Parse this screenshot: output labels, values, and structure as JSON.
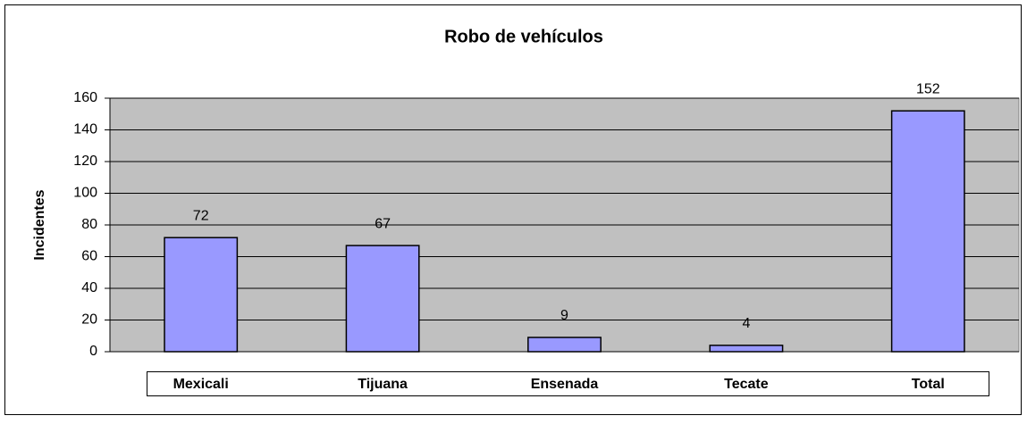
{
  "chart_data": {
    "type": "bar",
    "title": "Robo de vehículos",
    "y_label": "Incidentes",
    "categories": [
      "Mexicali",
      "Tijuana",
      "Ensenada",
      "Tecate",
      "Total"
    ],
    "values": [
      72,
      67,
      9,
      4,
      152
    ],
    "color": "#9999ff",
    "ylim": [
      0,
      160
    ],
    "yticks": [
      0,
      20,
      40,
      60,
      80,
      100,
      120,
      140,
      160
    ],
    "grid": true
  }
}
